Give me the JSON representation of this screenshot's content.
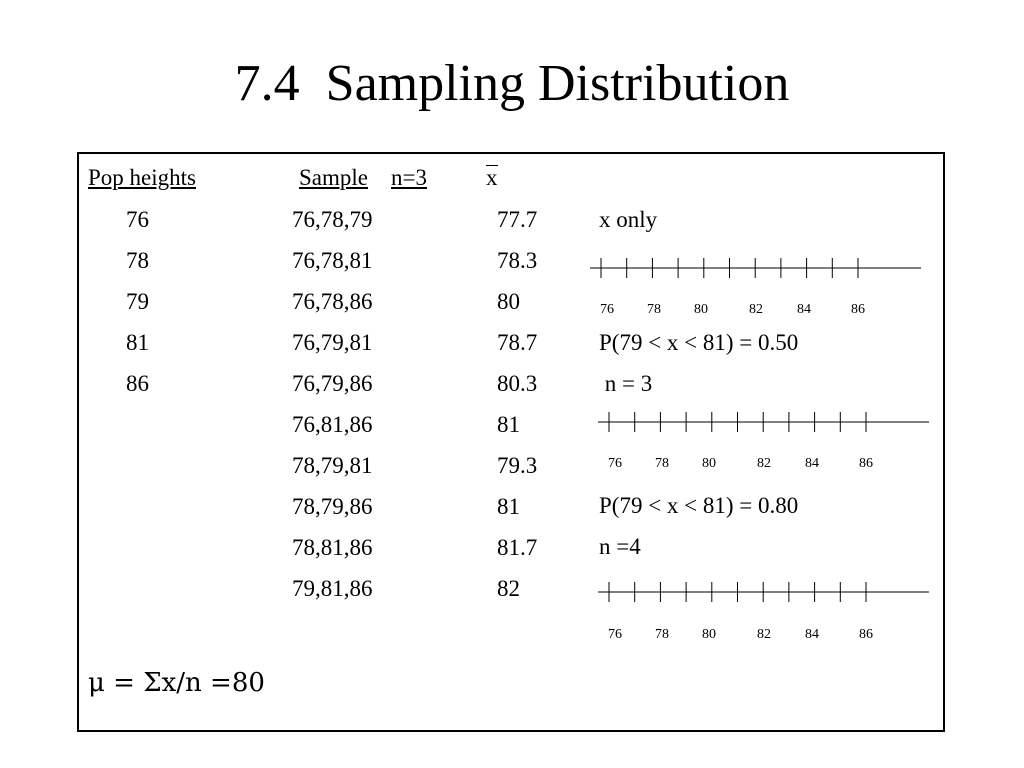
{
  "title": "7.4  Sampling Distribution",
  "headers": {
    "pop": "Pop heights",
    "sample": "Sample",
    "n": "n=3",
    "xbar": "x"
  },
  "pop_heights": [
    "76",
    "78",
    "79",
    "81",
    "86"
  ],
  "samples": [
    {
      "sample": "76,78,79",
      "mean": "77.7"
    },
    {
      "sample": "76,78,81",
      "mean": "78.3"
    },
    {
      "sample": "76,78,86",
      "mean": "80"
    },
    {
      "sample": "76,79,81",
      "mean": "78.7"
    },
    {
      "sample": "76,79,86",
      "mean": "80.3"
    },
    {
      "sample": "76,81,86",
      "mean": "81"
    },
    {
      "sample": "78,79,81",
      "mean": "79.3"
    },
    {
      "sample": "78,79,86",
      "mean": "81"
    },
    {
      "sample": "78,81,86",
      "mean": "81.7"
    },
    {
      "sample": "79,81,86",
      "mean": "82"
    }
  ],
  "right_notes": {
    "x_only": "x only",
    "prob1": "P(79 < x < 81) = 0.50",
    "n3": " n = 3",
    "prob2": "P(79 < x < 81) = 0.80",
    "n4": "n =4"
  },
  "tick_labels": [
    "76",
    "78",
    "80",
    "82",
    "84",
    "86"
  ],
  "mu_formula": "μ = Σx/n =80"
}
